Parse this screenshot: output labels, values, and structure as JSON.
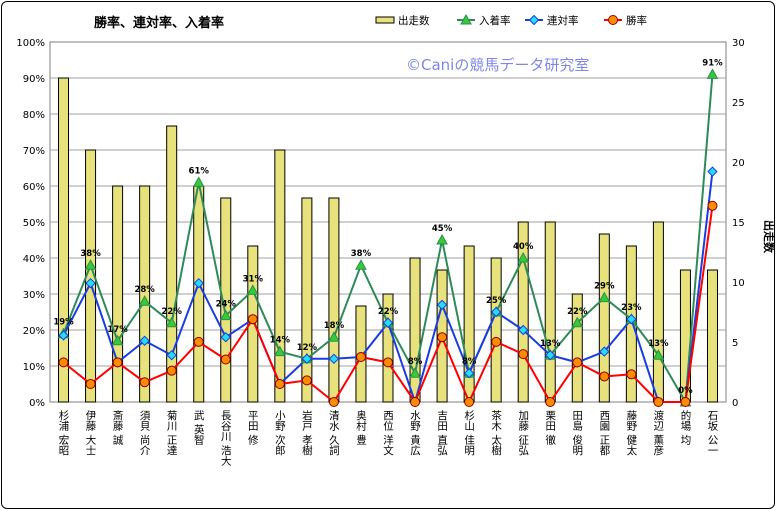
{
  "chart_data": {
    "type": "bar",
    "title": "勝率、連対率、入着率",
    "watermark": "©Caniの競馬データ研究室",
    "ylabel_right": "出走数",
    "y_left_ticks": [
      "0%",
      "10%",
      "20%",
      "30%",
      "40%",
      "50%",
      "60%",
      "70%",
      "80%",
      "90%",
      "100%"
    ],
    "y_right_ticks": [
      "0",
      "5",
      "10",
      "15",
      "20",
      "25",
      "30"
    ],
    "ylim_left": [
      0,
      1
    ],
    "ylim_right": [
      0,
      30
    ],
    "grid": true,
    "legend_position": "top",
    "categories": [
      "杉浦 宏昭",
      "伊藤 大士",
      "斎藤 誠",
      "須貝 尚介",
      "菊川 正達",
      "武 英智",
      "長谷川 浩大",
      "平田 修",
      "小野 次郎",
      "岩戸 孝樹",
      "清水 久詞",
      "奥村 豊",
      "西位 洋文",
      "水野 貴広",
      "吉田 直弘",
      "杉山 佳明",
      "茶木 太樹",
      "加藤 征弘",
      "栗田 徹",
      "田島 俊明",
      "西園 正都",
      "藤野 健太",
      "渡辺 薫彦",
      "的場 均",
      "石坂 公一"
    ],
    "series": [
      {
        "name": "出走数",
        "kind": "bar",
        "axis": "right",
        "color": "#e8e27c",
        "values": [
          27,
          21,
          18,
          18,
          23,
          18,
          17,
          13,
          21,
          17,
          17,
          8,
          9,
          12,
          11,
          13,
          12,
          15,
          15,
          9,
          14,
          13,
          15,
          11,
          11
        ]
      },
      {
        "name": "入着率",
        "kind": "line",
        "axis": "left",
        "color": "#2e8b57",
        "marker": "triangle",
        "marker_fill": "#33cc33",
        "values": [
          0.19,
          0.38,
          0.17,
          0.28,
          0.22,
          0.61,
          0.24,
          0.31,
          0.14,
          0.12,
          0.18,
          0.38,
          0.22,
          0.08,
          0.45,
          0.08,
          0.25,
          0.4,
          0.13,
          0.22,
          0.29,
          0.23,
          0.13,
          0.0,
          0.91
        ]
      },
      {
        "name": "連対率",
        "kind": "line",
        "axis": "left",
        "color": "#1a3de0",
        "marker": "diamond",
        "marker_fill": "#22ddff",
        "values": [
          0.185,
          0.33,
          0.11,
          0.17,
          0.13,
          0.33,
          0.18,
          0.23,
          0.05,
          0.12,
          0.12,
          0.125,
          0.22,
          0.0,
          0.27,
          0.08,
          0.25,
          0.2,
          0.13,
          0.11,
          0.14,
          0.23,
          0.0,
          0.0,
          0.64
        ]
      },
      {
        "name": "勝率",
        "kind": "line",
        "axis": "left",
        "color": "#ff0000",
        "marker": "circle",
        "marker_fill": "#ff8c00",
        "values": [
          0.11,
          0.05,
          0.11,
          0.055,
          0.087,
          0.167,
          0.118,
          0.23,
          0.05,
          0.06,
          0.0,
          0.125,
          0.11,
          0.0,
          0.18,
          0.0,
          0.167,
          0.133,
          0.0,
          0.11,
          0.071,
          0.077,
          0.0,
          0.0,
          0.545
        ]
      }
    ],
    "data_labels": {
      "series": "入着率",
      "labels": [
        "19%",
        "38%",
        "17%",
        "28%",
        "22%",
        "61%",
        "24%",
        "31%",
        "14%",
        "12%",
        "18%",
        "38%",
        "22%",
        "8%",
        "45%",
        "8%",
        "25%",
        "40%",
        "13%",
        "22%",
        "29%",
        "23%",
        "13%",
        "0%",
        "91%"
      ]
    }
  }
}
